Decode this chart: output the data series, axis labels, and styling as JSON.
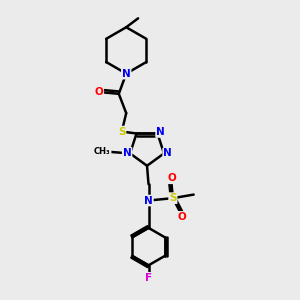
{
  "background_color": "#ebebeb",
  "atom_colors": {
    "C": "#000000",
    "N": "#0000ee",
    "O": "#ff0000",
    "S": "#cccc00",
    "F": "#dd00dd",
    "H": "#000000"
  },
  "bond_color": "#000000",
  "bond_width": 1.8,
  "figsize": [
    3.0,
    3.0
  ],
  "dpi": 100
}
